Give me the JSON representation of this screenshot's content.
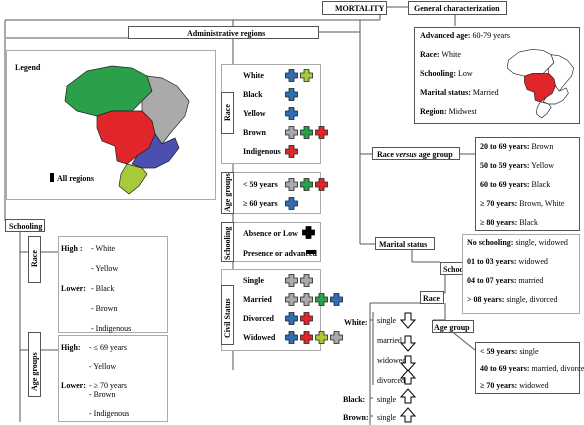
{
  "header": {
    "mortality": "MORTALITY",
    "general_characterization": "General characterization",
    "administrative_regions": "Administrative regions",
    "legend": "Legend",
    "all_regions": "All regions"
  },
  "general": {
    "items": [
      {
        "label": "Advanced age:",
        "value": " 60-79 years"
      },
      {
        "label": "Race:",
        "value": " White"
      },
      {
        "label": "Schooling:",
        "value": " Low"
      },
      {
        "label": "Marital status:",
        "value": " Married"
      },
      {
        "label": "Region:",
        "value": " Midwest"
      }
    ]
  },
  "legend_panel": {
    "race_title": "Race",
    "race_rows": [
      {
        "label": "White",
        "crosses": [
          "#2f6eb5",
          "#a8c93a"
        ]
      },
      {
        "label": "Black",
        "crosses": [
          "#2f6eb5"
        ]
      },
      {
        "label": "Yellow",
        "crosses": [
          "#2f6eb5"
        ]
      },
      {
        "label": "Brown",
        "crosses": [
          "#aaaaaa",
          "#2aa04a",
          "#e0262b"
        ]
      },
      {
        "label": "Indigenous",
        "crosses": [
          "#e0262b"
        ]
      }
    ],
    "age_title": "Age groups",
    "age_rows": [
      {
        "label": "< 59 years",
        "crosses": [
          "#aaaaaa",
          "#2aa04a",
          "#e0262b"
        ]
      },
      {
        "label": "≥ 60 years",
        "crosses": [
          "#2f6eb5"
        ]
      }
    ],
    "schooling_title": "Schooling",
    "schooling_rows": [
      {
        "label": "Absence or Low"
      },
      {
        "label": "Presence or advanced"
      }
    ],
    "civil_title": "Civil Status",
    "civil_rows": [
      {
        "label": "Single",
        "crosses": [
          "#aaaaaa",
          "#aaaaaa"
        ]
      },
      {
        "label": "Married",
        "crosses": [
          "#aaaaaa",
          "#aaaaaa",
          "#2aa04a",
          "#2f6eb5"
        ]
      },
      {
        "label": "Divorced",
        "crosses": [
          "#2f6eb5",
          "#e0262b"
        ]
      },
      {
        "label": "Widowed",
        "crosses": [
          "#2f6eb5",
          "#e0262b",
          "#a8c93a",
          "#aaaaaa"
        ]
      }
    ]
  },
  "schooling_left": {
    "title": "Schooling",
    "race_title": "Race",
    "high": "High :",
    "lower": "Lower:",
    "race_items": [
      "- White",
      "- Yellow",
      "- Black",
      "- Brown",
      "- Indigenous"
    ],
    "age_title": "Age groups",
    "age_high": "High:",
    "age_lower": "Lower:",
    "age_items": [
      "- ≤ 69 years",
      "- Yellow",
      "- ≥ 70 years",
      "- Brown",
      "- Indigenous"
    ]
  },
  "race_age": {
    "title": "Race",
    "title_italic": "versus",
    "title_end": "age group",
    "items": [
      {
        "label": "20 to 69 years:",
        "value": " Brown"
      },
      {
        "label": "50 to 59 years:",
        "value": " Yellow"
      },
      {
        "label": "60 to 69 years:",
        "value": " Black"
      },
      {
        "label": "≥ 70 years:",
        "value": " Brown, White"
      },
      {
        "label": "≥ 80 years:",
        "value": " Black"
      }
    ]
  },
  "marital": {
    "title": "Marital status",
    "schooling": "Schooling",
    "race": "Race",
    "age_group": "Age group",
    "schooling_items": [
      {
        "label": "No schooling:",
        "value": " single, widowed"
      },
      {
        "label": "01 to 03 years:",
        "value": " widowed"
      },
      {
        "label": "04 to 07 years:",
        "value": " married"
      },
      {
        "label": "> 08 years:",
        "value": " single, divorced"
      }
    ],
    "white_label": "White:",
    "white_items": [
      "single",
      "married",
      "widowed",
      "divorced"
    ],
    "black_label": "Black:",
    "black_item": "single",
    "brown_label": "Brown:",
    "brown_item": "single",
    "age_items": [
      {
        "label": "< 59 years:",
        "value": " single"
      },
      {
        "label": "40 to 69 years:",
        "value": " married, divorced"
      },
      {
        "label": "≥ 70 years:",
        "value": " widowed"
      }
    ]
  },
  "colors": {
    "north": "#2aa04a",
    "northeast": "#aaaaaa",
    "midwest": "#e0262b",
    "southeast": "#4a4fb0",
    "south": "#a8c93a",
    "blue_cross": "#2f6eb5"
  }
}
